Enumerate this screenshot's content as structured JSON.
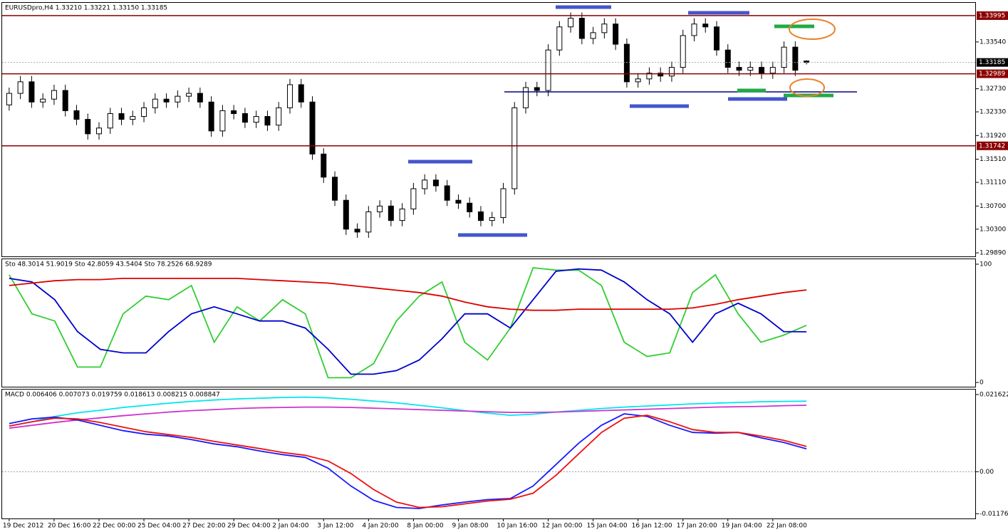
{
  "chart_data": [
    {
      "type": "candlestick",
      "title": "EURUSDpro,H4  1.33210 1.33221 1.33150 1.33185",
      "categories": [
        "19 Dec 2012",
        null,
        null,
        null,
        "20 Dec 16:00",
        null,
        null,
        null,
        "22 Dec 00:00",
        null,
        null,
        null,
        "25 Dec 04:00",
        null,
        null,
        null,
        "27 Dec 20:00",
        null,
        null,
        null,
        "29 Dec 04:00",
        null,
        null,
        null,
        "2 Jan 04:00",
        null,
        null,
        null,
        "3 Jan 12:00",
        null,
        null,
        null,
        "4 Jan 20:00",
        null,
        null,
        null,
        "8 Jan 00:00",
        null,
        null,
        null,
        "9 Jan 08:00",
        null,
        null,
        null,
        "10 Jan 16:00",
        null,
        null,
        null,
        "12 Jan 00:00",
        null,
        null,
        null,
        "15 Jan 04:00",
        null,
        null,
        null,
        "16 Jan 12:00",
        null,
        null,
        null,
        "17 Jan 20:00",
        null,
        null,
        null,
        "19 Jan 04:00",
        null,
        null,
        null,
        "22 Jan 08:00",
        null,
        null,
        null
      ],
      "open": [
        1.3245,
        1.3265,
        1.3285,
        1.325,
        1.3255,
        1.327,
        1.3235,
        1.322,
        1.3195,
        1.3205,
        1.323,
        1.322,
        1.3225,
        1.324,
        1.3255,
        1.325,
        1.326,
        1.3265,
        1.325,
        1.32,
        1.3235,
        1.323,
        1.3215,
        1.3225,
        1.321,
        1.324,
        1.328,
        1.325,
        1.316,
        1.312,
        1.308,
        1.303,
        1.3025,
        1.306,
        1.307,
        1.3045,
        1.3065,
        1.31,
        1.3115,
        1.3105,
        1.308,
        1.3075,
        1.306,
        1.3045,
        1.305,
        1.31,
        1.324,
        1.3275,
        1.327,
        1.334,
        1.338,
        1.3395,
        1.336,
        1.337,
        1.3385,
        1.335,
        1.3285,
        1.329,
        1.33,
        1.3295,
        1.331,
        1.3365,
        1.3385,
        1.338,
        1.334,
        1.331,
        1.3305,
        1.331,
        1.33,
        1.331,
        1.3345,
        1.3321
      ],
      "high": [
        1.3275,
        1.3295,
        1.3295,
        1.3265,
        1.328,
        1.328,
        1.3245,
        1.323,
        1.3215,
        1.324,
        1.324,
        1.3235,
        1.325,
        1.3265,
        1.3265,
        1.327,
        1.3275,
        1.3275,
        1.326,
        1.3245,
        1.3245,
        1.324,
        1.3235,
        1.3235,
        1.325,
        1.329,
        1.329,
        1.326,
        1.317,
        1.313,
        1.309,
        1.304,
        1.307,
        1.308,
        1.308,
        1.3075,
        1.311,
        1.3125,
        1.3125,
        1.3115,
        1.309,
        1.3085,
        1.307,
        1.306,
        1.311,
        1.325,
        1.3285,
        1.3285,
        1.335,
        1.339,
        1.3405,
        1.3405,
        1.338,
        1.3395,
        1.3395,
        1.336,
        1.33,
        1.331,
        1.331,
        1.332,
        1.3375,
        1.3395,
        1.3395,
        1.339,
        1.335,
        1.332,
        1.332,
        1.332,
        1.332,
        1.3355,
        1.3355,
        1.33221
      ],
      "low": [
        1.3235,
        1.3255,
        1.324,
        1.324,
        1.3245,
        1.3225,
        1.321,
        1.3185,
        1.3185,
        1.3195,
        1.321,
        1.321,
        1.3215,
        1.323,
        1.324,
        1.324,
        1.325,
        1.324,
        1.319,
        1.319,
        1.322,
        1.3205,
        1.3205,
        1.32,
        1.32,
        1.323,
        1.324,
        1.315,
        1.311,
        1.307,
        1.302,
        1.3015,
        1.3015,
        1.305,
        1.3035,
        1.3035,
        1.3055,
        1.309,
        1.3095,
        1.307,
        1.3065,
        1.305,
        1.3035,
        1.3035,
        1.304,
        1.309,
        1.323,
        1.326,
        1.326,
        1.333,
        1.337,
        1.335,
        1.335,
        1.336,
        1.334,
        1.3275,
        1.3275,
        1.328,
        1.3285,
        1.3285,
        1.33,
        1.3355,
        1.337,
        1.333,
        1.33,
        1.3295,
        1.3295,
        1.329,
        1.329,
        1.33,
        1.3295,
        1.3315
      ],
      "close": [
        1.3265,
        1.3285,
        1.325,
        1.3255,
        1.327,
        1.3235,
        1.322,
        1.3195,
        1.3205,
        1.323,
        1.322,
        1.3225,
        1.324,
        1.3255,
        1.325,
        1.326,
        1.3265,
        1.325,
        1.32,
        1.3235,
        1.323,
        1.3215,
        1.3225,
        1.321,
        1.324,
        1.328,
        1.325,
        1.316,
        1.312,
        1.308,
        1.303,
        1.3025,
        1.306,
        1.307,
        1.3045,
        1.3065,
        1.31,
        1.3115,
        1.3105,
        1.308,
        1.3075,
        1.306,
        1.3045,
        1.305,
        1.31,
        1.324,
        1.3275,
        1.327,
        1.334,
        1.338,
        1.3395,
        1.336,
        1.337,
        1.3385,
        1.335,
        1.3285,
        1.329,
        1.33,
        1.3295,
        1.331,
        1.3365,
        1.3385,
        1.338,
        1.334,
        1.331,
        1.3305,
        1.331,
        1.33,
        1.331,
        1.3345,
        1.3305,
        1.33185
      ],
      "ylim": [
        1.29829,
        1.34216
      ],
      "yticks": [
        {
          "value": 1.3354,
          "label": "1.33540"
        },
        {
          "value": 1.3273,
          "label": "1.32730"
        },
        {
          "value": 1.3233,
          "label": "1.32330"
        },
        {
          "value": 1.3192,
          "label": "1.31920"
        },
        {
          "value": 1.3151,
          "label": "1.31510"
        },
        {
          "value": 1.3111,
          "label": "1.31110"
        },
        {
          "value": 1.307,
          "label": "1.30700"
        },
        {
          "value": 1.303,
          "label": "1.30300"
        },
        {
          "value": 1.2989,
          "label": "1.29890"
        }
      ],
      "levels": [
        1.33995,
        1.32989,
        1.31742
      ],
      "level_color": "#8b0000",
      "current_price": 1.33185
    },
    {
      "type": "line",
      "title": "Sto 48.3014 51.9019  Sto 42.8059 43.5404  Sto 78.2526 68.9289",
      "ylim": [
        -3.6,
        104.2
      ],
      "yticks": [
        0,
        100
      ],
      "series": [
        {
          "color": "#32cd32",
          "values": [
            91,
            58,
            52,
            13,
            13,
            58,
            73,
            70,
            82,
            34,
            64,
            52,
            70,
            58,
            4,
            4,
            16,
            52,
            73,
            85,
            34,
            19,
            46,
            97,
            95,
            95,
            82,
            34,
            22,
            25,
            76,
            91,
            58,
            34,
            40,
            48.3014
          ]
        },
        {
          "color": "#0000cd",
          "values": [
            88,
            85,
            70,
            43,
            28,
            25,
            25,
            43,
            58,
            64,
            58,
            52,
            52,
            46,
            28,
            7,
            7,
            10,
            19,
            37,
            58,
            58,
            46,
            70,
            94,
            96,
            95,
            85,
            70,
            58,
            34,
            58,
            67,
            58,
            43,
            42.8059
          ]
        },
        {
          "color": "#dd0000",
          "values": [
            82,
            84,
            86,
            87,
            87,
            88,
            88,
            88,
            88,
            88,
            88,
            87,
            86,
            85,
            84,
            82,
            80,
            78,
            76,
            73,
            68,
            64,
            62,
            61,
            61,
            62,
            62,
            62,
            62,
            62,
            63,
            66,
            70,
            73,
            76,
            78.2526
          ]
        }
      ]
    },
    {
      "type": "line",
      "title": "MACD 0.006406 0.007073 0.019759 0.018613 0.008215 0.008847",
      "ylim": [
        -0.01309,
        0.02301
      ],
      "yticks": [
        0.021622,
        {
          "value": 0,
          "label": "0.00"
        },
        -0.01176
      ],
      "series": [
        {
          "color": "#00e5ee",
          "values": [
            0.0128,
            0.014,
            0.0155,
            0.0165,
            0.0172,
            0.018,
            0.0186,
            0.0192,
            0.0197,
            0.0201,
            0.0204,
            0.0206,
            0.0208,
            0.0209,
            0.0207,
            0.0203,
            0.0198,
            0.0193,
            0.0186,
            0.0179,
            0.0171,
            0.0164,
            0.0158,
            0.0161,
            0.0167,
            0.0172,
            0.0177,
            0.0181,
            0.0184,
            0.0187,
            0.019,
            0.0192,
            0.0194,
            0.0196,
            0.0197,
            0.019759
          ]
        },
        {
          "color": "#cc33cc",
          "values": [
            0.0122,
            0.013,
            0.0138,
            0.0145,
            0.0151,
            0.0157,
            0.0162,
            0.0167,
            0.0171,
            0.0174,
            0.0177,
            0.0179,
            0.018,
            0.0181,
            0.0181,
            0.018,
            0.0178,
            0.0176,
            0.0174,
            0.0172,
            0.017,
            0.0168,
            0.0166,
            0.0166,
            0.0167,
            0.0169,
            0.0171,
            0.0173,
            0.0175,
            0.0177,
            0.0179,
            0.0181,
            0.0182,
            0.0183,
            0.0185,
            0.018613
          ]
        },
        {
          "color": "#1a1aff",
          "values": [
            0.0135,
            0.0148,
            0.0153,
            0.0145,
            0.013,
            0.0115,
            0.0105,
            0.01,
            0.009,
            0.0078,
            0.007,
            0.0058,
            0.0048,
            0.004,
            0.001,
            -0.004,
            -0.008,
            -0.01,
            -0.0103,
            -0.0093,
            -0.0085,
            -0.0078,
            -0.0075,
            -0.004,
            0.002,
            0.008,
            0.013,
            0.0162,
            0.0155,
            0.013,
            0.011,
            0.0108,
            0.011,
            0.0095,
            0.0082,
            0.006406
          ]
        },
        {
          "color": "#ee1111",
          "values": [
            0.0128,
            0.014,
            0.015,
            0.0148,
            0.0138,
            0.0125,
            0.0112,
            0.0104,
            0.0096,
            0.0085,
            0.0075,
            0.0065,
            0.0054,
            0.0046,
            0.003,
            -0.0005,
            -0.005,
            -0.0085,
            -0.01,
            -0.0098,
            -0.009,
            -0.0082,
            -0.0077,
            -0.006,
            -0.001,
            0.005,
            0.011,
            0.015,
            0.0158,
            0.014,
            0.0118,
            0.011,
            0.011,
            0.01,
            0.0088,
            0.007073
          ]
        }
      ]
    }
  ]
}
